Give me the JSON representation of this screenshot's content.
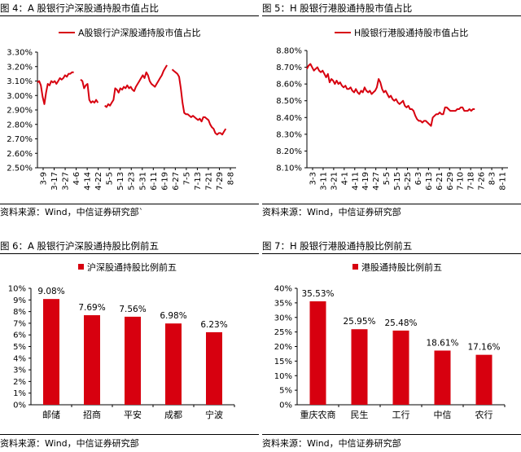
{
  "figures": [
    {
      "title": "图 4：A 股银行沪深股通持股市值占比",
      "source": "资料来源：Wind，中信证券研究部`",
      "legend": "A股银行沪深股通持股市值占比"
    },
    {
      "title": "图 5：H 股银行港股通持股市值占比",
      "source": "资料来源：Wind，中信证券研究部",
      "legend": "H股银行港股通持股市值占比"
    },
    {
      "title": "图 6：A 股银行沪深股通持股比例前五",
      "source": "资料来源：Wind，中信证券研究部",
      "legend": "沪深股通持股比例前五"
    },
    {
      "title": "图 7：H 股银行港股通持股比例前五",
      "source": "资料来源：Wind，中信证券研究部",
      "legend": "港股通持股比例前五"
    }
  ],
  "colors": {
    "series": "#d7000f",
    "axis": "#000000"
  },
  "chart_data": [
    {
      "type": "line",
      "title": "A股银行沪深股通持股市值占比",
      "y_ticks": [
        "3.30%",
        "3.20%",
        "3.10%",
        "3.00%",
        "2.90%",
        "2.80%",
        "2.70%",
        "2.60%",
        "2.50%"
      ],
      "ylim": [
        2.5,
        3.3
      ],
      "x_ticks": [
        "3-9",
        "3-17",
        "3-27",
        "4-6",
        "4-14",
        "4-22",
        "5-5",
        "5-13",
        "5-23",
        "5-31",
        "6-11",
        "6-19",
        "6-27",
        "7-5",
        "7-13",
        "7-21",
        "7-29",
        "8-8"
      ],
      "x_range": [
        0,
        115
      ],
      "series": [
        {
          "name": "A股银行沪深股通持股市值占比",
          "segments": [
            [
              [
                0,
                3.09
              ],
              [
                1,
                3.1
              ],
              [
                2,
                3.07
              ],
              [
                3,
                2.99
              ],
              [
                4,
                2.94
              ],
              [
                5,
                3.02
              ],
              [
                6,
                3.08
              ],
              [
                7,
                3.07
              ],
              [
                8,
                3.1
              ],
              [
                9,
                3.09
              ],
              [
                10,
                3.1
              ],
              [
                11,
                3.08
              ],
              [
                12,
                3.1
              ],
              [
                13,
                3.12
              ],
              [
                14,
                3.11
              ],
              [
                15,
                3.12
              ],
              [
                16,
                3.14
              ],
              [
                17,
                3.13
              ],
              [
                18,
                3.15
              ],
              [
                19,
                3.15
              ],
              [
                20,
                3.16
              ],
              [
                21,
                3.16
              ]
            ],
            [
              [
                25,
                3.11
              ],
              [
                26,
                3.1
              ],
              [
                27,
                3.05
              ],
              [
                28,
                3.07
              ],
              [
                29,
                3.08
              ],
              [
                30,
                2.97
              ],
              [
                31,
                2.95
              ],
              [
                32,
                2.96
              ],
              [
                33,
                2.95
              ],
              [
                34,
                2.97
              ],
              [
                35,
                2.95
              ]
            ],
            [
              [
                39,
                2.93
              ],
              [
                40,
                2.92
              ],
              [
                41,
                2.94
              ],
              [
                42,
                2.93
              ],
              [
                43,
                2.95
              ],
              [
                44,
                2.97
              ],
              [
                45,
                3.05
              ],
              [
                46,
                3.04
              ],
              [
                47,
                3.02
              ],
              [
                48,
                3.05
              ],
              [
                49,
                3.04
              ],
              [
                50,
                3.06
              ],
              [
                51,
                3.05
              ],
              [
                52,
                3.07
              ],
              [
                53,
                3.05
              ],
              [
                54,
                3.06
              ],
              [
                55,
                3.04
              ],
              [
                56,
                3.03
              ],
              [
                57,
                3.06
              ],
              [
                58,
                3.08
              ],
              [
                59,
                3.1
              ],
              [
                60,
                3.12
              ],
              [
                61,
                3.14
              ],
              [
                62,
                3.12
              ],
              [
                63,
                3.16
              ],
              [
                64,
                3.14
              ],
              [
                65,
                3.1
              ],
              [
                66,
                3.08
              ],
              [
                67,
                3.07
              ],
              [
                68,
                3.06
              ],
              [
                69,
                3.08
              ],
              [
                70,
                3.1
              ],
              [
                71,
                3.12
              ],
              [
                72,
                3.14
              ],
              [
                73,
                3.17
              ],
              [
                74,
                3.19
              ],
              [
                75,
                3.21
              ]
            ],
            [
              [
                78,
                3.18
              ],
              [
                79,
                3.17
              ],
              [
                80,
                3.16
              ],
              [
                81,
                3.15
              ],
              [
                82,
                3.13
              ],
              [
                83,
                3.05
              ],
              [
                84,
                2.95
              ],
              [
                85,
                2.88
              ],
              [
                86,
                2.87
              ],
              [
                87,
                2.87
              ],
              [
                88,
                2.86
              ],
              [
                89,
                2.85
              ],
              [
                90,
                2.86
              ],
              [
                91,
                2.85
              ],
              [
                92,
                2.84
              ],
              [
                93,
                2.83
              ],
              [
                94,
                2.84
              ],
              [
                95,
                2.82
              ],
              [
                96,
                2.85
              ],
              [
                97,
                2.85
              ],
              [
                98,
                2.84
              ],
              [
                99,
                2.83
              ],
              [
                100,
                2.8
              ],
              [
                101,
                2.78
              ],
              [
                102,
                2.77
              ],
              [
                103,
                2.74
              ],
              [
                104,
                2.73
              ],
              [
                105,
                2.74
              ],
              [
                106,
                2.74
              ],
              [
                107,
                2.73
              ],
              [
                108,
                2.75
              ],
              [
                109,
                2.77
              ]
            ]
          ]
        }
      ]
    },
    {
      "type": "line",
      "title": "H股银行港股通持股市值占比",
      "y_ticks": [
        "8.80%",
        "8.70%",
        "8.60%",
        "8.50%",
        "8.40%",
        "8.30%",
        "8.20%",
        "8.10%"
      ],
      "ylim": [
        8.1,
        8.8
      ],
      "x_ticks": [
        "3-3",
        "3-11",
        "3-21",
        "4-1",
        "4-11",
        "4-19",
        "4-27",
        "5-5",
        "5-15",
        "5-25",
        "6-3",
        "6-13",
        "6-21",
        "6-29",
        "7-10",
        "7-18",
        "7-26",
        "8-3",
        "8-11"
      ],
      "x_range": [
        0,
        115
      ],
      "series": [
        {
          "name": "H股银行港股通持股市值占比",
          "segments": [
            [
              [
                0,
                8.69
              ],
              [
                1,
                8.71
              ],
              [
                2,
                8.72
              ],
              [
                3,
                8.7
              ],
              [
                4,
                8.68
              ],
              [
                5,
                8.69
              ],
              [
                6,
                8.7
              ],
              [
                7,
                8.68
              ],
              [
                8,
                8.67
              ],
              [
                9,
                8.68
              ],
              [
                10,
                8.66
              ],
              [
                11,
                8.64
              ],
              [
                12,
                8.66
              ],
              [
                13,
                8.61
              ],
              [
                14,
                8.63
              ],
              [
                15,
                8.62
              ],
              [
                16,
                8.6
              ],
              [
                17,
                8.62
              ],
              [
                18,
                8.6
              ],
              [
                19,
                8.61
              ],
              [
                20,
                8.59
              ],
              [
                21,
                8.58
              ],
              [
                22,
                8.59
              ],
              [
                23,
                8.57
              ],
              [
                24,
                8.57
              ],
              [
                25,
                8.58
              ],
              [
                26,
                8.56
              ],
              [
                27,
                8.55
              ],
              [
                28,
                8.57
              ],
              [
                29,
                8.55
              ],
              [
                30,
                8.54
              ],
              [
                31,
                8.56
              ],
              [
                32,
                8.55
              ],
              [
                33,
                8.58
              ],
              [
                34,
                8.56
              ],
              [
                35,
                8.55
              ],
              [
                36,
                8.56
              ],
              [
                37,
                8.54
              ],
              [
                38,
                8.55
              ],
              [
                39,
                8.56
              ],
              [
                40,
                8.58
              ],
              [
                41,
                8.63
              ],
              [
                42,
                8.61
              ],
              [
                43,
                8.57
              ],
              [
                44,
                8.55
              ],
              [
                45,
                8.56
              ],
              [
                46,
                8.54
              ],
              [
                47,
                8.52
              ],
              [
                48,
                8.53
              ],
              [
                49,
                8.51
              ],
              [
                50,
                8.5
              ],
              [
                51,
                8.51
              ],
              [
                52,
                8.49
              ],
              [
                53,
                8.48
              ],
              [
                54,
                8.49
              ],
              [
                55,
                8.5
              ],
              [
                56,
                8.47
              ],
              [
                57,
                8.46
              ],
              [
                58,
                8.47
              ],
              [
                59,
                8.45
              ],
              [
                60,
                8.45
              ],
              [
                61,
                8.44
              ],
              [
                62,
                8.41
              ],
              [
                63,
                8.39
              ],
              [
                64,
                8.38
              ],
              [
                65,
                8.38
              ],
              [
                66,
                8.37
              ],
              [
                67,
                8.38
              ],
              [
                68,
                8.38
              ],
              [
                69,
                8.37
              ],
              [
                70,
                8.36
              ],
              [
                71,
                8.35
              ],
              [
                72,
                8.4
              ],
              [
                73,
                8.41
              ],
              [
                74,
                8.42
              ],
              [
                75,
                8.42
              ],
              [
                76,
                8.43
              ],
              [
                77,
                8.42
              ],
              [
                78,
                8.42
              ],
              [
                79,
                8.46
              ],
              [
                80,
                8.46
              ],
              [
                81,
                8.45
              ],
              [
                82,
                8.44
              ],
              [
                83,
                8.44
              ],
              [
                84,
                8.44
              ],
              [
                85,
                8.44
              ],
              [
                86,
                8.45
              ],
              [
                87,
                8.45
              ],
              [
                88,
                8.46
              ],
              [
                89,
                8.46
              ],
              [
                90,
                8.44
              ],
              [
                91,
                8.44
              ],
              [
                92,
                8.44
              ],
              [
                93,
                8.45
              ],
              [
                94,
                8.44
              ],
              [
                95,
                8.45
              ],
              [
                96,
                8.45
              ]
            ]
          ]
        }
      ]
    },
    {
      "type": "bar",
      "title": "沪深股通持股比例前五",
      "categories": [
        "邮储",
        "招商",
        "平安",
        "成都",
        "宁波"
      ],
      "values": [
        9.08,
        7.69,
        7.56,
        6.98,
        6.23
      ],
      "value_labels": [
        "9.08%",
        "7.69%",
        "7.56%",
        "6.98%",
        "6.23%"
      ],
      "y_ticks": [
        "10%",
        "9%",
        "8%",
        "7%",
        "6%",
        "5%",
        "4%",
        "3%",
        "2%",
        "1%",
        "0%"
      ],
      "ylim": [
        0,
        10
      ]
    },
    {
      "type": "bar",
      "title": "港股通持股比例前五",
      "categories": [
        "重庆农商",
        "民生",
        "工行",
        "中信",
        "农行"
      ],
      "values": [
        35.53,
        25.95,
        25.48,
        18.61,
        17.16
      ],
      "value_labels": [
        "35.53%",
        "25.95%",
        "25.48%",
        "18.61%",
        "17.16%"
      ],
      "y_ticks": [
        "40%",
        "35%",
        "30%",
        "25%",
        "20%",
        "15%",
        "10%",
        "5%",
        "0%"
      ],
      "ylim": [
        0,
        40
      ]
    }
  ]
}
